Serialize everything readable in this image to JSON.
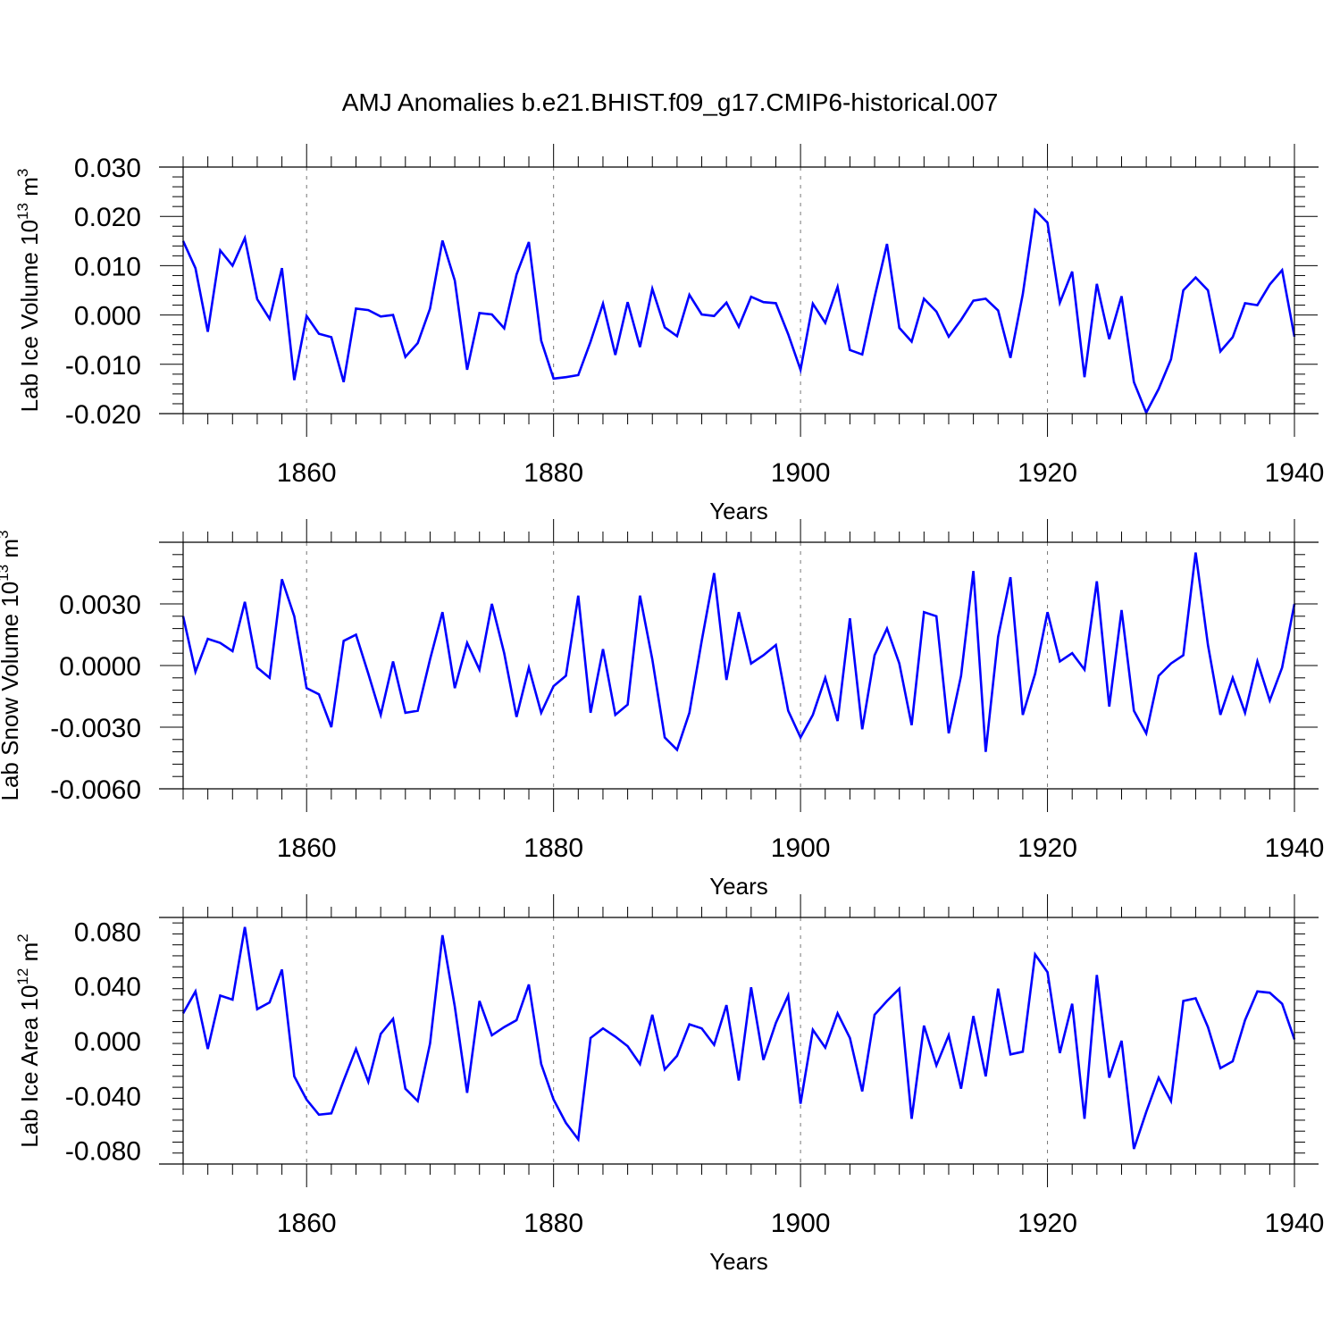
{
  "title": "AMJ Anomalies b.e21.BHIST.f09_g17.CMIP6-historical.007",
  "line_color": "#0000ff",
  "chart_data": [
    {
      "type": "line",
      "ylabel_main": "Lab Ice Volume 10",
      "ylabel_exp": "13",
      "ylabel_unit": "m",
      "ylabel_unit_exp": "3",
      "xlabel": "Years",
      "xlim": [
        1850,
        1940
      ],
      "ylim": [
        -0.02,
        0.03
      ],
      "x_ticks": [
        1860,
        1880,
        1900,
        1920,
        1940
      ],
      "x_tick_labels": [
        "1860",
        "1880",
        "1900",
        "1920",
        "1940"
      ],
      "y_ticks": [
        -0.02,
        -0.01,
        0.0,
        0.01,
        0.02,
        0.03
      ],
      "y_tick_labels": [
        "-0.020",
        "-0.010",
        "0.000",
        "0.010",
        "0.020",
        "0.030"
      ],
      "x_start": 1850,
      "values": [
        0.015,
        0.0095,
        -0.0034,
        0.0131,
        0.01,
        0.0156,
        0.0032,
        -0.0008,
        0.0095,
        -0.0132,
        -0.0002,
        -0.0038,
        -0.0045,
        -0.0136,
        0.0013,
        0.001,
        -0.0003,
        0.0,
        -0.0085,
        -0.0057,
        0.0013,
        0.0151,
        0.007,
        -0.0111,
        0.0004,
        0.0001,
        -0.0027,
        0.0082,
        0.0148,
        -0.0052,
        -0.0129,
        -0.0126,
        -0.0122,
        -0.0054,
        0.0023,
        -0.0081,
        0.0026,
        -0.0065,
        0.0053,
        -0.0025,
        -0.0043,
        0.0041,
        0.0001,
        -0.0002,
        0.0025,
        -0.0024,
        0.0037,
        0.0026,
        0.0024,
        -0.0039,
        -0.0111,
        0.0023,
        -0.0016,
        0.0057,
        -0.0071,
        -0.008,
        0.0036,
        0.0144,
        -0.0026,
        -0.0054,
        0.0033,
        0.0007,
        -0.0044,
        -0.001,
        0.0029,
        0.0033,
        0.0009,
        -0.0087,
        0.0042,
        0.0213,
        0.0187,
        0.0025,
        0.0088,
        -0.0126,
        0.0063,
        -0.0049,
        0.0038,
        -0.0136,
        -0.0198,
        -0.015,
        -0.009,
        0.005,
        0.0076,
        0.005,
        -0.0074,
        -0.0045,
        0.0024,
        0.002,
        0.0062,
        0.0091,
        -0.0044
      ]
    },
    {
      "type": "line",
      "ylabel_main": "Lab Snow Volume 10",
      "ylabel_exp": "13",
      "ylabel_unit": "m",
      "ylabel_unit_exp": "3",
      "xlabel": "Years",
      "xlim": [
        1850,
        1940
      ],
      "ylim": [
        -0.006,
        0.006
      ],
      "x_ticks": [
        1860,
        1880,
        1900,
        1920,
        1940
      ],
      "x_tick_labels": [
        "1860",
        "1880",
        "1900",
        "1920",
        "1940"
      ],
      "y_ticks": [
        -0.006,
        -0.003,
        0.0,
        0.003
      ],
      "y_tick_labels": [
        "-0.0060",
        "-0.0030",
        "0.0000",
        "0.0030"
      ],
      "x_start": 1850,
      "values": [
        0.0024,
        -0.0003,
        0.0013,
        0.0011,
        0.0007,
        0.0031,
        -0.0001,
        -0.0006,
        0.0042,
        0.0024,
        -0.0011,
        -0.0014,
        -0.003,
        0.0012,
        0.0015,
        -0.0004,
        -0.0024,
        0.0002,
        -0.0023,
        -0.0022,
        0.0003,
        0.0026,
        -0.0011,
        0.0011,
        -0.0002,
        0.003,
        0.0006,
        -0.0025,
        -0.0001,
        -0.0023,
        -0.001,
        -0.0005,
        0.0034,
        -0.0023,
        0.0008,
        -0.0024,
        -0.0019,
        0.0034,
        0.0003,
        -0.0035,
        -0.0041,
        -0.0023,
        0.0012,
        0.0045,
        -0.0007,
        0.0026,
        0.0001,
        0.0005,
        0.001,
        -0.0022,
        -0.0035,
        -0.0024,
        -0.0006,
        -0.0027,
        0.0023,
        -0.0031,
        0.0005,
        0.0018,
        0.0001,
        -0.0029,
        0.0026,
        0.0024,
        -0.0033,
        -0.0005,
        0.0046,
        -0.0042,
        0.0014,
        0.0043,
        -0.0024,
        -0.0004,
        0.0026,
        0.0002,
        0.0006,
        -0.0002,
        0.0041,
        -0.002,
        0.0027,
        -0.0022,
        -0.0033,
        -0.0005,
        0.0001,
        0.0005,
        0.0055,
        0.001,
        -0.0024,
        -0.0006,
        -0.0023,
        0.0002,
        -0.0017,
        -0.0001,
        0.003
      ]
    },
    {
      "type": "line",
      "ylabel_main": "Lab Ice Area 10",
      "ylabel_exp": "12",
      "ylabel_unit": "m",
      "ylabel_unit_exp": "2",
      "xlabel": "Years",
      "xlim": [
        1850,
        1940
      ],
      "ylim": [
        -0.09,
        0.09
      ],
      "x_ticks": [
        1860,
        1880,
        1900,
        1920,
        1940
      ],
      "x_tick_labels": [
        "1860",
        "1880",
        "1900",
        "1920",
        "1940"
      ],
      "y_ticks": [
        -0.08,
        -0.04,
        0.0,
        0.04,
        0.08
      ],
      "y_tick_labels": [
        "-0.080",
        "-0.040",
        "0.000",
        "0.040",
        "0.080"
      ],
      "x_start": 1850,
      "values": [
        0.02,
        0.036,
        -0.006,
        0.033,
        0.03,
        0.083,
        0.023,
        0.028,
        0.052,
        -0.026,
        -0.043,
        -0.054,
        -0.053,
        -0.029,
        -0.006,
        -0.03,
        0.005,
        0.016,
        -0.035,
        -0.044,
        -0.002,
        0.077,
        0.025,
        -0.038,
        0.029,
        0.004,
        0.01,
        0.015,
        0.041,
        -0.017,
        -0.043,
        -0.06,
        -0.072,
        0.002,
        0.009,
        0.003,
        -0.004,
        -0.017,
        0.019,
        -0.021,
        -0.011,
        0.012,
        0.009,
        -0.003,
        0.026,
        -0.029,
        0.039,
        -0.014,
        0.013,
        0.033,
        -0.046,
        0.008,
        -0.005,
        0.02,
        0.002,
        -0.037,
        0.019,
        0.029,
        0.038,
        -0.057,
        0.011,
        -0.018,
        0.004,
        -0.035,
        0.018,
        -0.026,
        0.038,
        -0.01,
        -0.008,
        0.063,
        0.05,
        -0.009,
        0.027,
        -0.057,
        0.048,
        -0.027,
        0.0,
        -0.079,
        -0.052,
        -0.027,
        -0.044,
        0.029,
        0.031,
        0.01,
        -0.02,
        -0.015,
        0.015,
        0.036,
        0.035,
        0.027,
        0.001
      ]
    }
  ]
}
